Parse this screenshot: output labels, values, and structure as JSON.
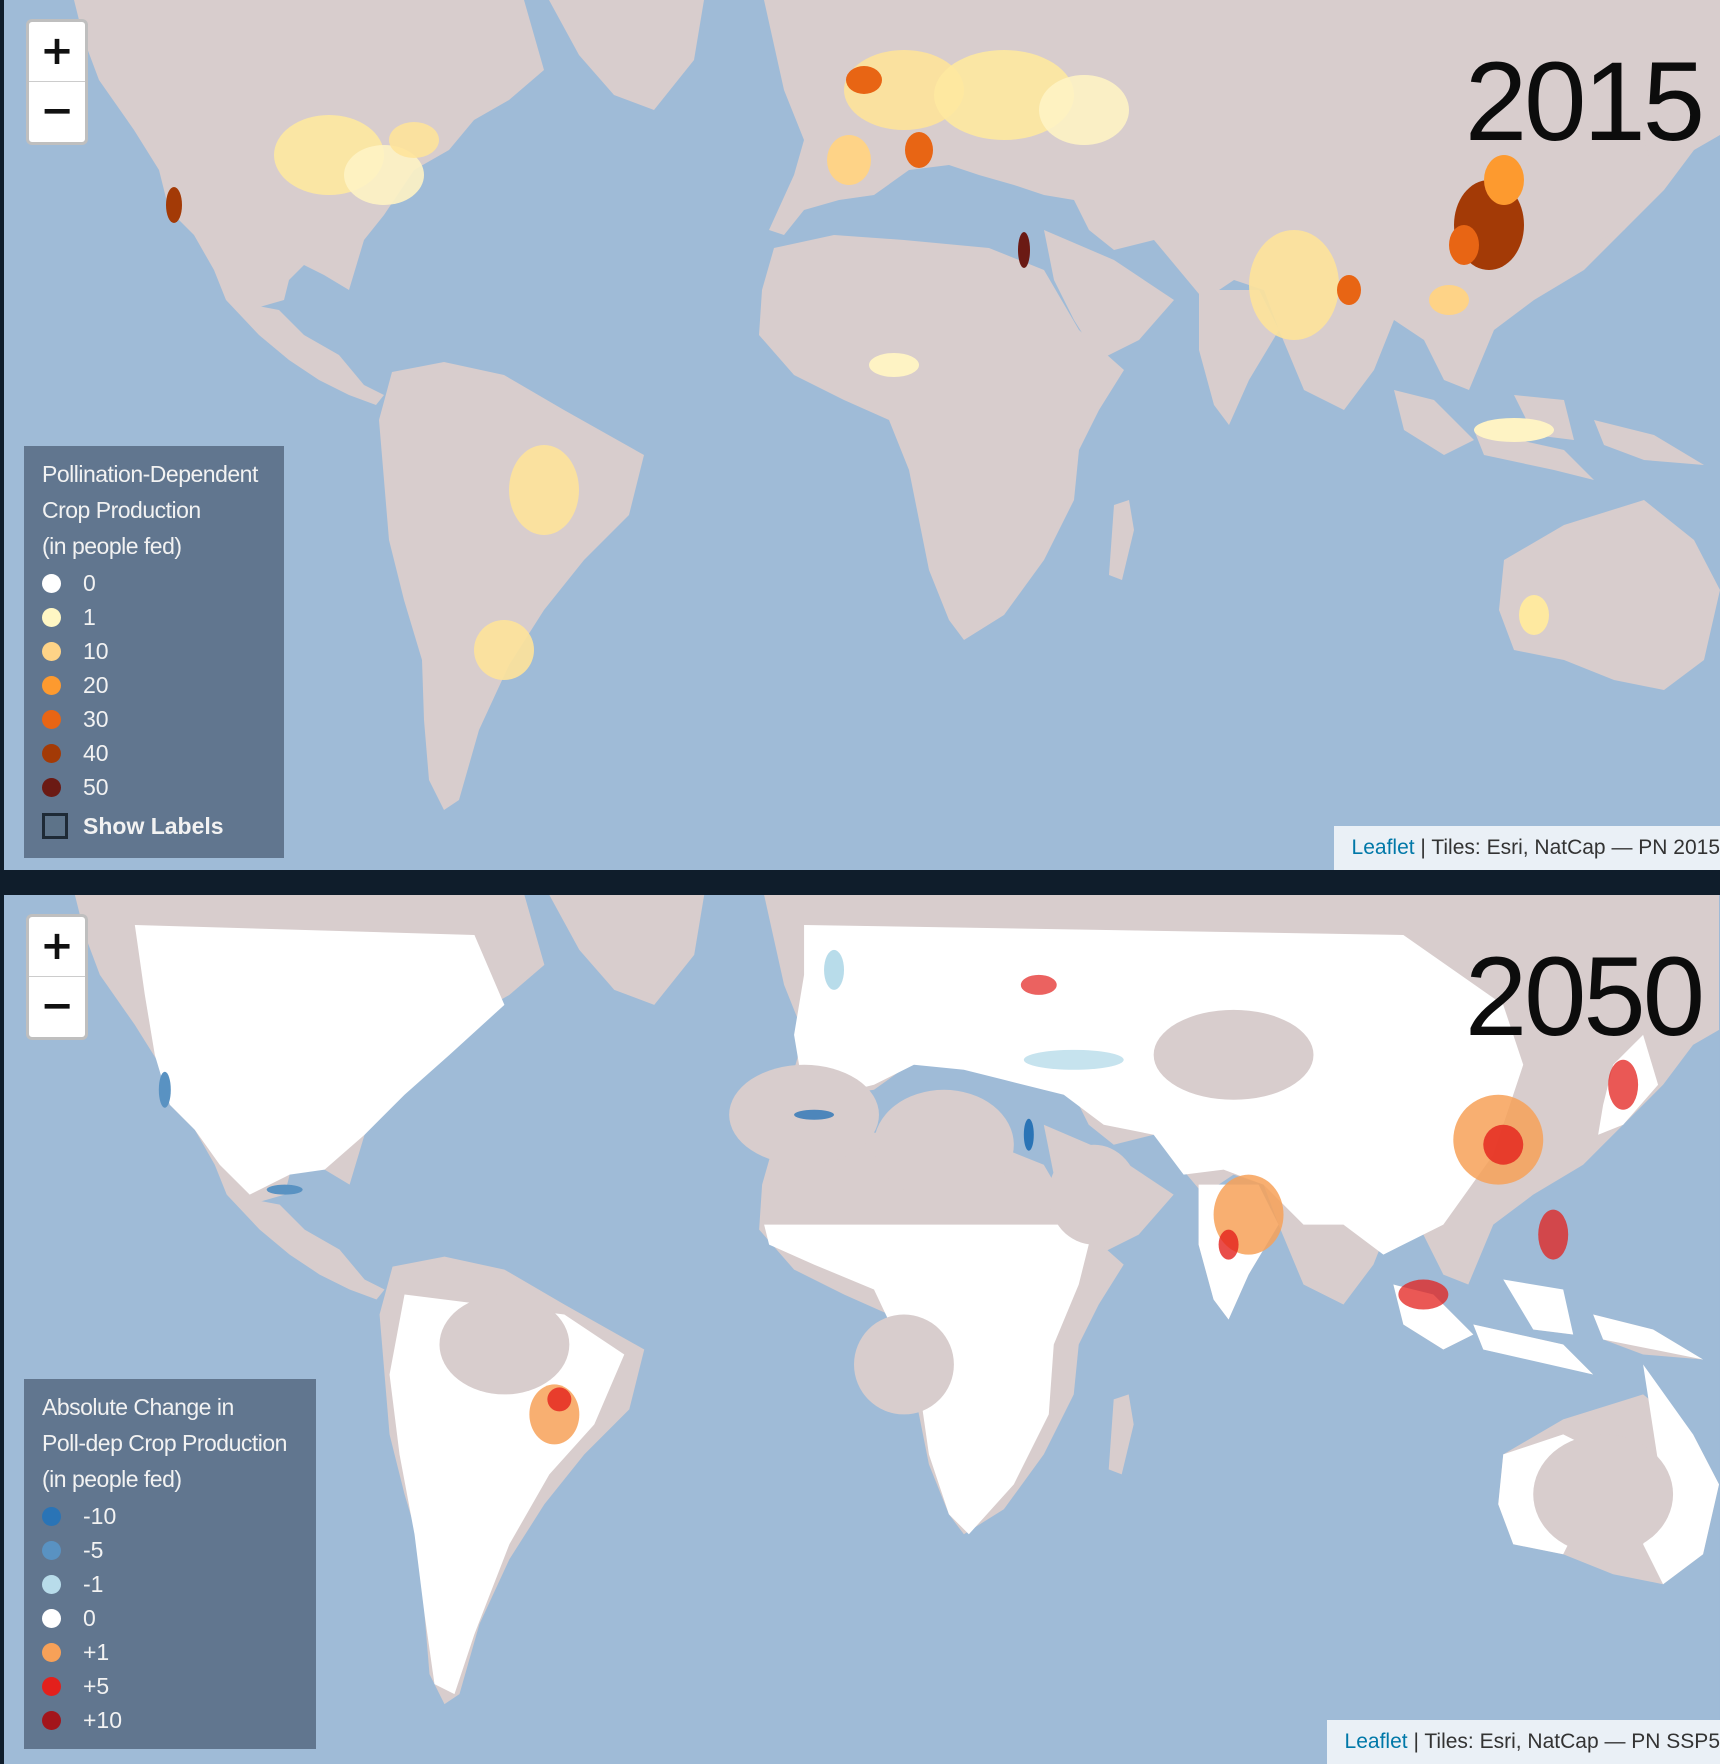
{
  "panels": [
    {
      "year": "2015",
      "legend": {
        "title_lines": [
          "Pollination-Dependent",
          "Crop Production",
          "(in people fed)"
        ],
        "items": [
          {
            "label": "0",
            "color": "#ffffff"
          },
          {
            "label": "1",
            "color": "#fff7c4"
          },
          {
            "label": "10",
            "color": "#fed387"
          },
          {
            "label": "20",
            "color": "#fd9a2f"
          },
          {
            "label": "30",
            "color": "#e86514"
          },
          {
            "label": "40",
            "color": "#a33a06"
          },
          {
            "label": "50",
            "color": "#6b1a14"
          }
        ],
        "show_labels": "Show Labels",
        "show_labels_checked": false
      },
      "attribution": {
        "link": "Leaflet",
        "text": " | Tiles: Esri, NatCap — PN 2015"
      }
    },
    {
      "year": "2050",
      "legend": {
        "title_lines": [
          "Absolute Change in",
          "Poll-dep Crop Production",
          "(in people fed)"
        ],
        "items": [
          {
            "label": "-10",
            "color": "#2a74b6"
          },
          {
            "label": "-5",
            "color": "#5992c2"
          },
          {
            "label": "-1",
            "color": "#b8dcea"
          },
          {
            "label": "0",
            "color": "#ffffff"
          },
          {
            "label": "+1",
            "color": "#f7a158"
          },
          {
            "label": "+5",
            "color": "#e3201c"
          },
          {
            "label": "+10",
            "color": "#a3151b"
          }
        ]
      },
      "attribution": {
        "link": "Leaflet",
        "text": " | Tiles: Esri, NatCap — PN SSP5"
      }
    }
  ],
  "zoom": {
    "in": "+",
    "out": "−"
  },
  "colors": {
    "ocean": "#9fbbd7",
    "land": "#d8cdcd",
    "divider": "#0f1d2b"
  }
}
